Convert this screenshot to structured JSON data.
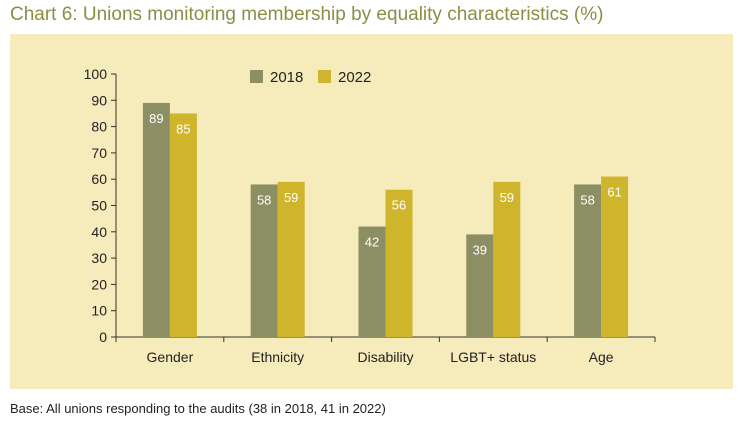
{
  "title": "Chart 6: Unions monitoring membership by equality characteristics (%)",
  "base_note": "Base: All unions responding to the audits (38 in 2018, 41 in 2022)",
  "colors": {
    "panel": "#f6ebbb",
    "series_2018": "#8c8e63",
    "series_2022": "#cfb52b",
    "title": "#8c8e44"
  },
  "chart_data": {
    "type": "bar",
    "title": "Chart 6: Unions monitoring membership by equality characteristics (%)",
    "xlabel": "",
    "ylabel": "",
    "ylim": [
      0,
      100
    ],
    "yticks": [
      0,
      10,
      20,
      30,
      40,
      50,
      60,
      70,
      80,
      90,
      100
    ],
    "grid": false,
    "legend_position": "top-center",
    "categories": [
      "Gender",
      "Ethnicity",
      "Disability",
      "LGBT+ status",
      "Age"
    ],
    "series": [
      {
        "name": "2018",
        "values": [
          89,
          58,
          42,
          39,
          58
        ],
        "color": "#8c8e63"
      },
      {
        "name": "2022",
        "values": [
          85,
          59,
          56,
          59,
          61
        ],
        "color": "#cfb52b"
      }
    ]
  }
}
